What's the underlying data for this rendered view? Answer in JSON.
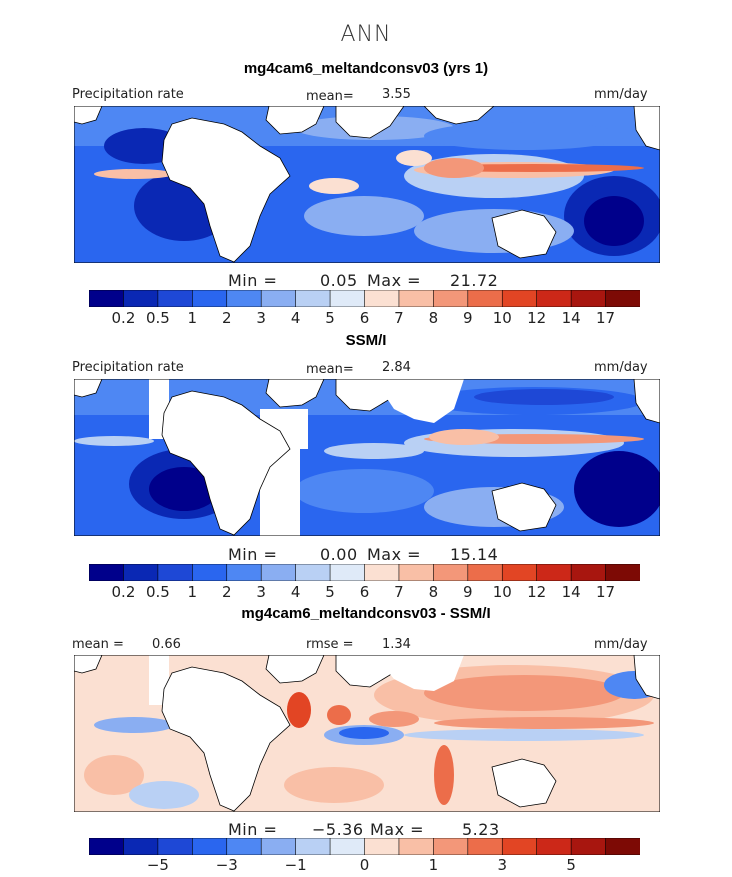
{
  "season": "ANN",
  "colors": {
    "precip_levels": [
      "#00008b",
      "#0a28b4",
      "#1e48d6",
      "#2a66ef",
      "#4e87f3",
      "#8aaef2",
      "#b9d0f4",
      "#dfeaf8",
      "#fbe0d2",
      "#f9bfa6",
      "#f39779",
      "#ec6d4a",
      "#e24524",
      "#cc2818",
      "#a8160f",
      "#7d0a05"
    ],
    "diff_levels": [
      "#00008b",
      "#0a28b4",
      "#1e48d6",
      "#2a66ef",
      "#4e87f3",
      "#8aaef2",
      "#b9d0f4",
      "#dfeaf8",
      "#fbe0d2",
      "#f9bfa6",
      "#f39779",
      "#ec6d4a",
      "#e24524",
      "#cc2818",
      "#a8160f",
      "#7d0a05"
    ],
    "land": "#ffffff",
    "coast": "#000000"
  },
  "chart_data": [
    {
      "type": "heatmap",
      "title": "mg4cam6_meltandconsv03 (yrs 1)",
      "left_label": "Precipitation rate",
      "stat_label": "mean=",
      "stat_value": "3.55",
      "units": "mm/day",
      "min_label": "Min =",
      "min_value": "0.05",
      "max_label": "Max =",
      "max_value": "21.72",
      "colorbar_labels": [
        "0.2",
        "0.5",
        "1",
        "2",
        "3",
        "4",
        "5",
        "6",
        "7",
        "8",
        "9",
        "10",
        "12",
        "14",
        "17"
      ]
    },
    {
      "type": "heatmap",
      "title": "SSM/I",
      "left_label": "Precipitation rate",
      "stat_label": "mean=",
      "stat_value": "2.84",
      "units": "mm/day",
      "min_label": "Min =",
      "min_value": "0.00",
      "max_label": "Max =",
      "max_value": "15.14",
      "colorbar_labels": [
        "0.2",
        "0.5",
        "1",
        "2",
        "3",
        "4",
        "5",
        "6",
        "7",
        "8",
        "9",
        "10",
        "12",
        "14",
        "17"
      ]
    },
    {
      "type": "heatmap",
      "title": "mg4cam6_meltandconsv03 - SSM/I",
      "left_label": "mean =",
      "left_value": "0.66",
      "stat_label": "rmse =",
      "stat_value": "1.34",
      "units": "mm/day",
      "min_label": "Min =",
      "min_value": "−5.36",
      "max_label": "Max =",
      "max_value": "5.23",
      "colorbar_labels": [
        "−5",
        "−3",
        "−1",
        "0",
        "1",
        "3",
        "5"
      ]
    }
  ]
}
